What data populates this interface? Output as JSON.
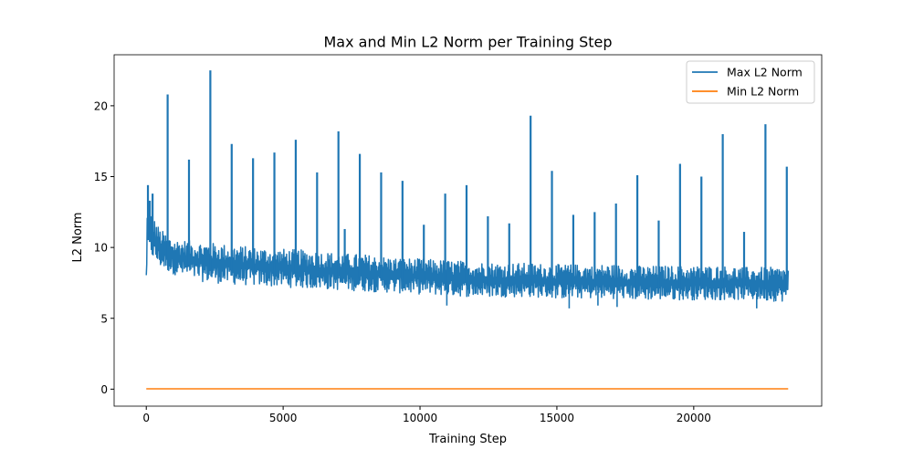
{
  "chart_data": {
    "type": "line",
    "title": "Max and Min L2 Norm per Training Step",
    "xlabel": "Training Step",
    "ylabel": "L2 Norm",
    "xlim": [
      -1175,
      24675
    ],
    "ylim": [
      -1.2,
      23.6
    ],
    "x_ticks": [
      0,
      5000,
      10000,
      15000,
      20000
    ],
    "x_tick_labels": [
      "0",
      "5000",
      "10000",
      "15000",
      "20000"
    ],
    "y_ticks": [
      0,
      5,
      10,
      15,
      20
    ],
    "y_tick_labels": [
      "0",
      "5",
      "10",
      "15",
      "20"
    ],
    "legend_position": "top-right",
    "grid": false,
    "series": [
      {
        "name": "Max L2 Norm",
        "color": "#1f77b4",
        "envelope": {
          "x": [
            0,
            30,
            80,
            150,
            300,
            500,
            1000,
            2000,
            3000,
            4000,
            5000,
            6000,
            7000,
            8000,
            9000,
            10000,
            11000,
            12000,
            13000,
            14000,
            15000,
            16000,
            17000,
            18000,
            19000,
            20000,
            21000,
            22000,
            23000,
            23450
          ],
          "upper": [
            8.2,
            12.5,
            13.0,
            12.6,
            12.0,
            11.3,
            10.6,
            10.4,
            10.2,
            10.0,
            9.9,
            9.8,
            9.6,
            9.5,
            9.3,
            9.2,
            9.1,
            9.0,
            8.9,
            8.9,
            8.8,
            8.8,
            8.8,
            8.7,
            8.7,
            8.7,
            8.7,
            8.6,
            8.6,
            8.6
          ],
          "lower": [
            7.2,
            9.6,
            9.8,
            9.5,
            9.0,
            8.6,
            8.1,
            7.6,
            7.4,
            7.3,
            7.2,
            7.1,
            7.0,
            6.9,
            6.8,
            6.7,
            6.6,
            6.5,
            6.5,
            6.5,
            6.4,
            6.4,
            6.4,
            6.3,
            6.3,
            6.3,
            6.3,
            6.3,
            6.2,
            6.2
          ]
        },
        "spikes": [
          {
            "x": 60,
            "y": 14.4
          },
          {
            "x": 130,
            "y": 13.3
          },
          {
            "x": 230,
            "y": 13.8
          },
          {
            "x": 780,
            "y": 20.8
          },
          {
            "x": 1560,
            "y": 16.2
          },
          {
            "x": 2340,
            "y": 22.5
          },
          {
            "x": 3120,
            "y": 17.3
          },
          {
            "x": 3900,
            "y": 16.3
          },
          {
            "x": 4680,
            "y": 16.7
          },
          {
            "x": 5460,
            "y": 17.6
          },
          {
            "x": 6240,
            "y": 15.3
          },
          {
            "x": 7020,
            "y": 18.2
          },
          {
            "x": 7250,
            "y": 11.3
          },
          {
            "x": 7800,
            "y": 16.6
          },
          {
            "x": 8580,
            "y": 15.3
          },
          {
            "x": 9360,
            "y": 14.7
          },
          {
            "x": 10140,
            "y": 11.6
          },
          {
            "x": 10920,
            "y": 13.8
          },
          {
            "x": 11700,
            "y": 14.4
          },
          {
            "x": 12480,
            "y": 12.2
          },
          {
            "x": 13260,
            "y": 11.7
          },
          {
            "x": 14040,
            "y": 19.3
          },
          {
            "x": 14820,
            "y": 15.4
          },
          {
            "x": 15600,
            "y": 12.3
          },
          {
            "x": 16380,
            "y": 12.5
          },
          {
            "x": 17160,
            "y": 13.1
          },
          {
            "x": 17940,
            "y": 15.1
          },
          {
            "x": 18720,
            "y": 11.9
          },
          {
            "x": 19500,
            "y": 15.9
          },
          {
            "x": 20280,
            "y": 15.0
          },
          {
            "x": 21060,
            "y": 18.0
          },
          {
            "x": 21840,
            "y": 11.1
          },
          {
            "x": 22620,
            "y": 18.7
          },
          {
            "x": 23400,
            "y": 15.7
          }
        ],
        "dips": [
          {
            "x": 10980,
            "y": 5.9
          },
          {
            "x": 15450,
            "y": 5.7
          },
          {
            "x": 16500,
            "y": 5.9
          },
          {
            "x": 17200,
            "y": 5.8
          },
          {
            "x": 22300,
            "y": 5.7
          }
        ]
      },
      {
        "name": "Min L2 Norm",
        "color": "#ff7f0e",
        "x": [
          0,
          23450
        ],
        "values": [
          0.02,
          0.02
        ]
      }
    ]
  }
}
